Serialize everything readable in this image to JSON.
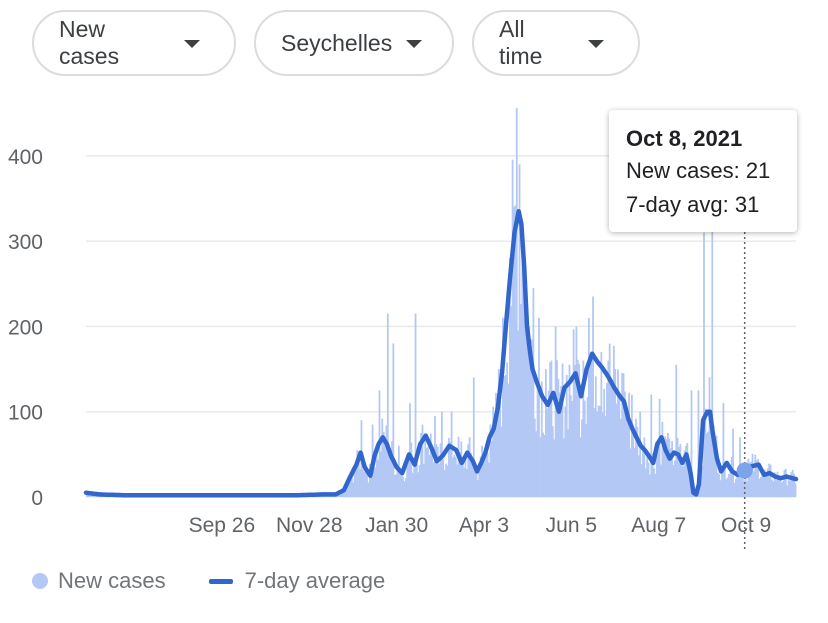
{
  "filters": [
    {
      "label": "New cases"
    },
    {
      "label": "Seychelles"
    },
    {
      "label": "All time"
    }
  ],
  "tooltip": {
    "date": "Oct 8, 2021",
    "new_cases_line": "New cases: 21",
    "avg_line": "7-day avg: 31"
  },
  "legend": {
    "bars": "New cases",
    "line": "7-day average"
  },
  "colors": {
    "bars": "#b3c8f4",
    "line": "#3366cc",
    "grid": "#e8eaed",
    "axis_text": "#5f6368"
  },
  "chart_data": {
    "type": "bar",
    "title": "New cases",
    "region": "Seychelles",
    "range": "All time",
    "series": [
      {
        "name": "New cases",
        "kind": "bar"
      },
      {
        "name": "7-day average",
        "kind": "line"
      }
    ],
    "y_ticks": [
      0,
      100,
      200,
      300,
      400
    ],
    "ylim": [
      0,
      460
    ],
    "x_tick_labels": [
      "Sep 26",
      "Nov 28",
      "Jan 30",
      "Apr 3",
      "Jun 5",
      "Aug 7",
      "Oct 9"
    ],
    "x_tick_day_index": [
      98,
      161,
      224,
      287,
      350,
      413,
      476
    ],
    "total_days": 512,
    "highlight": {
      "date": "Oct 8, 2021",
      "day_index": 475,
      "new_cases": 21,
      "avg": 31
    },
    "avg_keypoints": [
      [
        0,
        5
      ],
      [
        10,
        3
      ],
      [
        30,
        2
      ],
      [
        60,
        2
      ],
      [
        120,
        2
      ],
      [
        150,
        2
      ],
      [
        170,
        3
      ],
      [
        180,
        3
      ],
      [
        186,
        8
      ],
      [
        190,
        22
      ],
      [
        195,
        38
      ],
      [
        198,
        52
      ],
      [
        201,
        35
      ],
      [
        205,
        25
      ],
      [
        208,
        48
      ],
      [
        211,
        62
      ],
      [
        214,
        70
      ],
      [
        217,
        62
      ],
      [
        220,
        48
      ],
      [
        224,
        35
      ],
      [
        228,
        28
      ],
      [
        233,
        50
      ],
      [
        237,
        38
      ],
      [
        241,
        62
      ],
      [
        245,
        72
      ],
      [
        249,
        58
      ],
      [
        253,
        42
      ],
      [
        257,
        48
      ],
      [
        262,
        60
      ],
      [
        267,
        55
      ],
      [
        271,
        40
      ],
      [
        275,
        52
      ],
      [
        279,
        42
      ],
      [
        282,
        30
      ],
      [
        285,
        40
      ],
      [
        288,
        52
      ],
      [
        291,
        70
      ],
      [
        294,
        80
      ],
      [
        297,
        105
      ],
      [
        300,
        145
      ],
      [
        303,
        205
      ],
      [
        306,
        260
      ],
      [
        309,
        310
      ],
      [
        312,
        335
      ],
      [
        314,
        320
      ],
      [
        316,
        270
      ],
      [
        318,
        200
      ],
      [
        320,
        172
      ],
      [
        322,
        150
      ],
      [
        325,
        135
      ],
      [
        329,
        118
      ],
      [
        333,
        108
      ],
      [
        337,
        122
      ],
      [
        341,
        100
      ],
      [
        345,
        128
      ],
      [
        349,
        135
      ],
      [
        353,
        145
      ],
      [
        357,
        118
      ],
      [
        361,
        150
      ],
      [
        365,
        168
      ],
      [
        369,
        158
      ],
      [
        373,
        150
      ],
      [
        377,
        140
      ],
      [
        381,
        128
      ],
      [
        385,
        118
      ],
      [
        388,
        112
      ],
      [
        391,
        92
      ],
      [
        394,
        80
      ],
      [
        397,
        70
      ],
      [
        400,
        60
      ],
      [
        403,
        55
      ],
      [
        406,
        48
      ],
      [
        409,
        40
      ],
      [
        412,
        62
      ],
      [
        415,
        70
      ],
      [
        418,
        55
      ],
      [
        421,
        45
      ],
      [
        424,
        52
      ],
      [
        427,
        50
      ],
      [
        430,
        40
      ],
      [
        433,
        50
      ],
      [
        436,
        28
      ],
      [
        438,
        5
      ],
      [
        440,
        3
      ],
      [
        442,
        15
      ],
      [
        445,
        90
      ],
      [
        448,
        100
      ],
      [
        450,
        100
      ],
      [
        452,
        75
      ],
      [
        455,
        45
      ],
      [
        458,
        30
      ],
      [
        462,
        40
      ],
      [
        466,
        30
      ],
      [
        470,
        26
      ],
      [
        475,
        31
      ],
      [
        480,
        36
      ],
      [
        485,
        38
      ],
      [
        489,
        26
      ],
      [
        493,
        28
      ],
      [
        497,
        24
      ],
      [
        501,
        22
      ],
      [
        505,
        24
      ],
      [
        512,
        21
      ]
    ],
    "bar_spikes": [
      [
        198,
        90
      ],
      [
        206,
        85
      ],
      [
        211,
        125
      ],
      [
        217,
        215
      ],
      [
        221,
        180
      ],
      [
        225,
        60
      ],
      [
        233,
        110
      ],
      [
        237,
        215
      ],
      [
        241,
        75
      ],
      [
        251,
        95
      ],
      [
        256,
        100
      ],
      [
        263,
        100
      ],
      [
        270,
        65
      ],
      [
        279,
        140
      ],
      [
        285,
        60
      ],
      [
        291,
        85
      ],
      [
        297,
        150
      ],
      [
        300,
        210
      ],
      [
        305,
        280
      ],
      [
        308,
        340
      ],
      [
        310,
        460
      ],
      [
        312,
        390
      ],
      [
        319,
        200
      ],
      [
        322,
        245
      ],
      [
        326,
        210
      ],
      [
        331,
        150
      ],
      [
        335,
        160
      ],
      [
        338,
        200
      ],
      [
        342,
        130
      ],
      [
        348,
        155
      ],
      [
        353,
        200
      ],
      [
        358,
        160
      ],
      [
        362,
        210
      ],
      [
        371,
        170
      ],
      [
        376,
        160
      ],
      [
        381,
        150
      ],
      [
        387,
        145
      ],
      [
        393,
        120
      ],
      [
        399,
        100
      ],
      [
        407,
        120
      ],
      [
        413,
        115
      ],
      [
        419,
        75
      ],
      [
        425,
        155
      ],
      [
        432,
        60
      ],
      [
        436,
        125
      ],
      [
        441,
        125
      ],
      [
        445,
        310
      ],
      [
        451,
        320
      ],
      [
        459,
        110
      ],
      [
        466,
        80
      ],
      [
        471,
        70
      ],
      [
        477,
        45
      ]
    ]
  }
}
